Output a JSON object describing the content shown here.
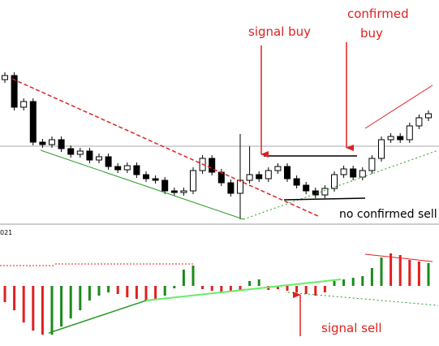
{
  "chart_data": {
    "type": "candlestick",
    "open": [
      182,
      187,
      148,
      155,
      105,
      102,
      108,
      97,
      90,
      94,
      83,
      87,
      75,
      71,
      76,
      65,
      60,
      58,
      45,
      43,
      45,
      70,
      85,
      68,
      55,
      42,
      58,
      65,
      60,
      70,
      75,
      60,
      52,
      45,
      40,
      48,
      65,
      72,
      62,
      70,
      85,
      108,
      112,
      108,
      125,
      135
    ],
    "high": [
      191,
      191,
      159,
      159,
      109,
      112,
      112,
      101,
      98,
      98,
      91,
      91,
      79,
      80,
      80,
      69,
      64,
      62,
      49,
      49,
      74,
      89,
      89,
      72,
      59,
      115,
      100,
      69,
      74,
      79,
      79,
      64,
      56,
      49,
      52,
      69,
      76,
      76,
      74,
      89,
      112,
      116,
      116,
      129,
      139,
      144
    ],
    "low": [
      178,
      144,
      144,
      101,
      98,
      98,
      93,
      86,
      86,
      79,
      79,
      71,
      67,
      67,
      61,
      56,
      54,
      41,
      39,
      39,
      41,
      66,
      64,
      51,
      38,
      10,
      54,
      56,
      56,
      66,
      56,
      48,
      41,
      36,
      36,
      44,
      61,
      58,
      58,
      66,
      81,
      104,
      104,
      104,
      121,
      131
    ],
    "close": [
      187,
      148,
      155,
      105,
      102,
      108,
      97,
      90,
      94,
      83,
      87,
      75,
      71,
      76,
      65,
      60,
      58,
      45,
      43,
      45,
      70,
      85,
      68,
      55,
      42,
      58,
      65,
      60,
      70,
      75,
      60,
      52,
      45,
      40,
      48,
      65,
      72,
      62,
      70,
      85,
      108,
      112,
      108,
      125,
      135,
      140
    ],
    "ylim": [
      0,
      280
    ],
    "histogram": {
      "type": "bar",
      "values": [
        -20,
        -30,
        -45,
        -55,
        -60,
        -60,
        -50,
        -40,
        -30,
        -18,
        -12,
        -8,
        -10,
        -14,
        -16,
        -18,
        -16,
        -12,
        -3,
        20,
        25,
        -4,
        -6,
        -8,
        -6,
        -5,
        6,
        8,
        -5,
        -4,
        -6,
        -8,
        -10,
        -12,
        -8,
        6,
        8,
        10,
        12,
        22,
        35,
        40,
        38,
        32,
        30,
        28
      ],
      "colors": [
        "#e02020",
        "#e02020",
        "#e02020",
        "#e02020",
        "#e02020",
        "#1a8a1a",
        "#1a8a1a",
        "#1a8a1a",
        "#1a8a1a",
        "#1a8a1a",
        "#1a8a1a",
        "#1a8a1a",
        "#e02020",
        "#e02020",
        "#e02020",
        "#e02020",
        "#e02020",
        "#1a8a1a",
        "#1a8a1a",
        "#1a8a1a",
        "#1a8a1a",
        "#e02020",
        "#e02020",
        "#e02020",
        "#e02020",
        "#e02020",
        "#1a8a1a",
        "#1a8a1a",
        "#e02020",
        "#e02020",
        "#e02020",
        "#e02020",
        "#e02020",
        "#e02020",
        "#e02020",
        "#1a8a1a",
        "#1a8a1a",
        "#1a8a1a",
        "#1a8a1a",
        "#1a8a1a",
        "#1a8a1a",
        "#e02020",
        "#e02020",
        "#e02020",
        "#e02020",
        "#1a8a1a"
      ],
      "ylim": [
        -74,
        74
      ]
    },
    "date_label": "021",
    "annotations": {
      "signal_buy": "signal buy",
      "confirmed_buy": [
        "confirmed",
        "buy"
      ],
      "no_confirmed_sell": "no confirmed sell",
      "signal_sell": "signal sell"
    }
  }
}
